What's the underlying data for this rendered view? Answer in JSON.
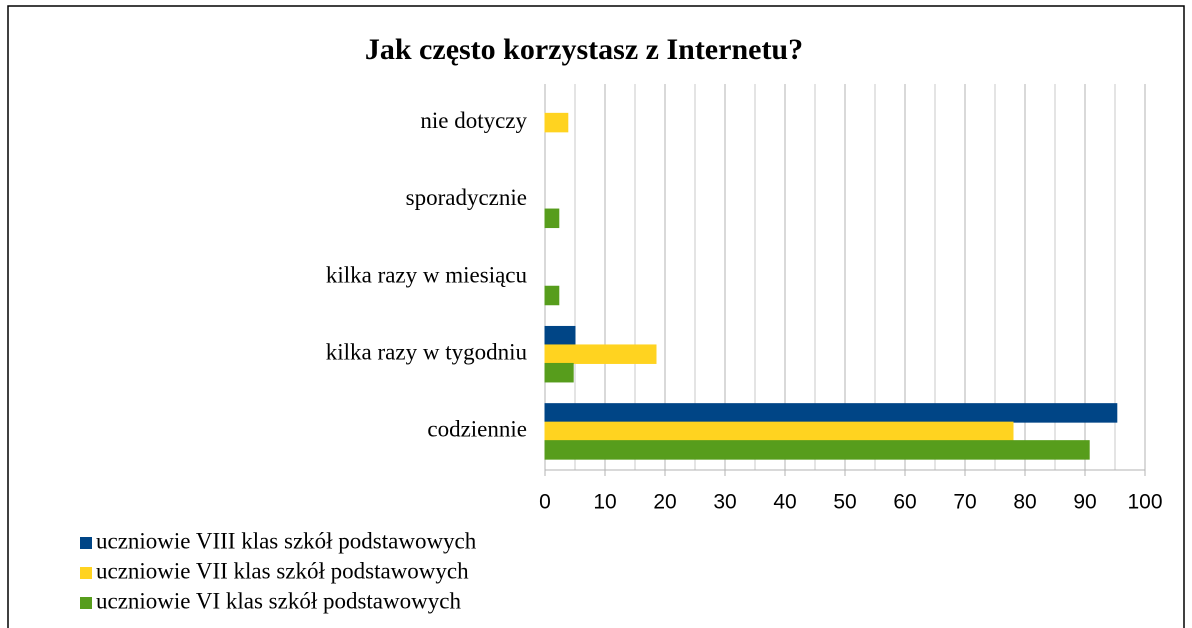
{
  "chart_data": {
    "type": "hbar",
    "title": "Jak często korzystasz z Internetu?",
    "categories": [
      "nie dotyczy",
      "sporadycznie",
      "kilka razy w miesiącu",
      "kilka razy w tygodniu",
      "codziennie"
    ],
    "series": [
      {
        "name": "uczniowie VIII klas szkół podstawowych",
        "color": "#004586",
        "values": [
          0,
          0,
          0,
          5,
          95.3
        ]
      },
      {
        "name": "uczniowie VII klas szkół podstawowych",
        "color": "#ffd320",
        "values": [
          3.8,
          0,
          0,
          18.5,
          78
        ]
      },
      {
        "name": "uczniowie VI klas szkół podstawowych",
        "color": "#579d1c",
        "values": [
          0,
          2.3,
          2.3,
          4.7,
          90.7
        ]
      }
    ],
    "xlim": [
      0,
      100
    ],
    "xticks": [
      0,
      10,
      20,
      30,
      40,
      50,
      60,
      70,
      80,
      90,
      100
    ],
    "minor_xticks": [
      5,
      15,
      25,
      35,
      45,
      55,
      65,
      75,
      85,
      95
    ],
    "grid": true,
    "legend": "bottom-left"
  }
}
